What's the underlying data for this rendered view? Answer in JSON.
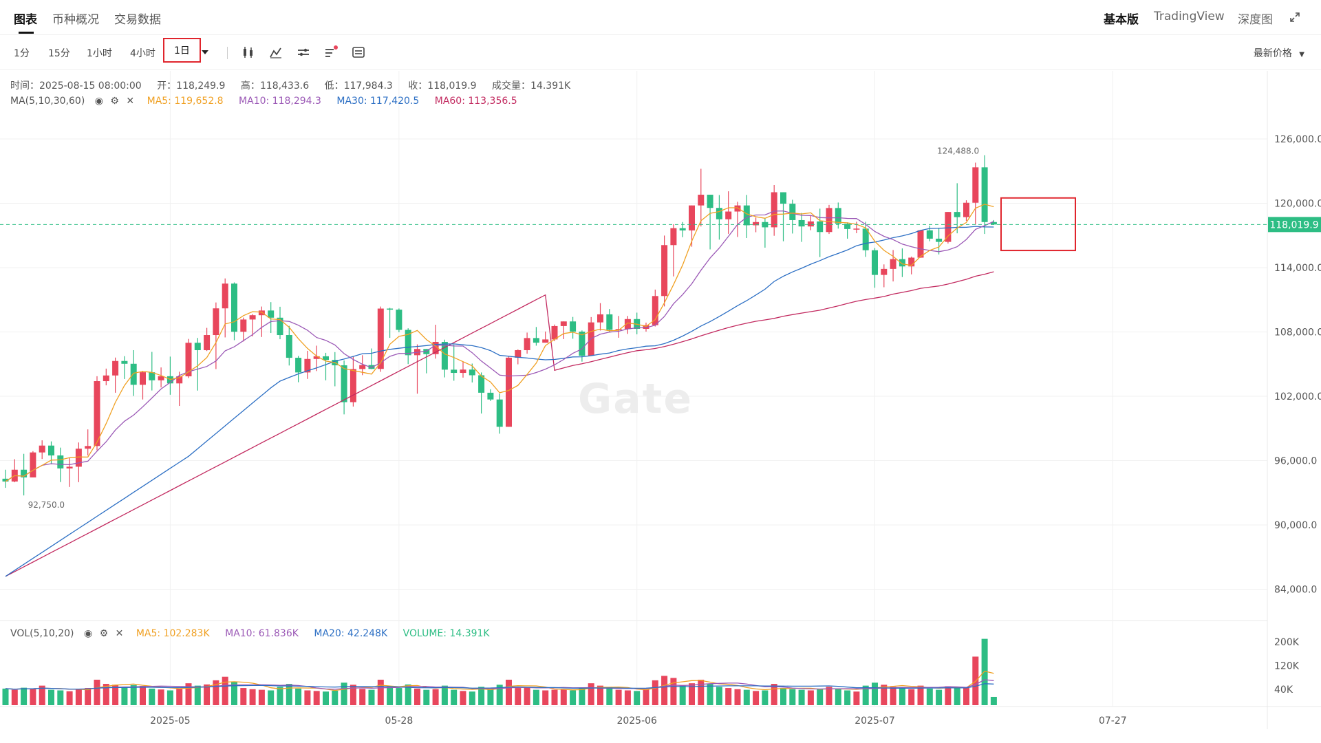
{
  "tabs": [
    {
      "label": "图表",
      "active": true
    },
    {
      "label": "币种概况",
      "active": false
    },
    {
      "label": "交易数据",
      "active": false
    }
  ],
  "right_tabs": [
    {
      "label": "基本版",
      "active": true
    },
    {
      "label": "TradingView",
      "active": false
    },
    {
      "label": "深度图",
      "active": false
    }
  ],
  "intervals": [
    "1分",
    "15分",
    "1小时",
    "4小时",
    "1日"
  ],
  "active_interval": "1日",
  "tools": [
    "candle-type-icon",
    "indicator-icon",
    "compare-icon",
    "drawing-icon",
    "settings-icon"
  ],
  "price_selector": "最新价格",
  "ohlc": {
    "time": "时间：2025-08-15 08:00:00",
    "open": "开：118,249.9",
    "high": "高：118,433.6",
    "low": "低：117,984.3",
    "close": "收：118,019.9",
    "volume": "成交量：14.391K"
  },
  "ma_legend": {
    "label": "MA(5,10,30,60)",
    "ma5": "MA5: 119,652.8",
    "ma10": "MA10: 118,294.3",
    "ma30": "MA30: 117,420.5",
    "ma60": "MA60: 113,356.5"
  },
  "vol_legend": {
    "label": "VOL(5,10,20)",
    "ma5": "MA5: 102.283K",
    "ma10": "MA10: 61.836K",
    "ma20": "MA20: 42.248K",
    "volume": "VOLUME: 14.391K"
  },
  "watermark": "Gate",
  "colors": {
    "up": "#e8465c",
    "down": "#2dbd84",
    "ma5": "#f0a022",
    "ma10": "#9b59b6",
    "ma30": "#2c6fc4",
    "ma60": "#c2295f",
    "grid": "#f1f1f1",
    "accent": "#e0242c"
  },
  "chart_data": {
    "type": "candlestick",
    "price_ylim": [
      80000,
      130000
    ],
    "y_ticks": [
      "126,000.0",
      "120,000.0",
      "114,000.0",
      "108,000.0",
      "102,000.0",
      "96,000.0",
      "90,000.0",
      "84,000.0"
    ],
    "vol_ticks": [
      "200K",
      "120K",
      "40K"
    ],
    "x_ticks": [
      "2025-05",
      "05-28",
      "2025-06",
      "2025-07",
      "07-27"
    ],
    "high_label": "124,488.0",
    "low_label": "92,750.0",
    "last_price": 118019.9,
    "last_price_label": "118,019.9",
    "candles": [
      [
        94310,
        94050,
        95150,
        93460,
        42
      ],
      [
        94050,
        95150,
        96130,
        93980,
        38
      ],
      [
        95150,
        94430,
        96630,
        92750,
        45
      ],
      [
        94430,
        96760,
        96880,
        94880,
        40
      ],
      [
        96760,
        97400,
        97890,
        96150,
        52
      ],
      [
        97400,
        96480,
        97790,
        95660,
        38
      ],
      [
        96480,
        95270,
        97210,
        94000,
        36
      ],
      [
        95270,
        95430,
        96290,
        93540,
        33
      ],
      [
        95430,
        97110,
        97690,
        93990,
        40
      ],
      [
        97110,
        97360,
        98910,
        96480,
        44
      ],
      [
        97360,
        103410,
        103870,
        96960,
        72
      ],
      [
        103410,
        103940,
        104580,
        103020,
        58
      ],
      [
        103940,
        105290,
        105610,
        102330,
        55
      ],
      [
        105290,
        105030,
        105740,
        103610,
        48
      ],
      [
        105030,
        103070,
        106300,
        102030,
        54
      ],
      [
        103070,
        104240,
        104370,
        101700,
        51
      ],
      [
        104240,
        103490,
        106140,
        102540,
        42
      ],
      [
        103490,
        103870,
        104690,
        102820,
        39
      ],
      [
        103870,
        103200,
        105700,
        102140,
        36
      ],
      [
        103200,
        103860,
        104290,
        101100,
        41
      ],
      [
        103860,
        106990,
        107350,
        103700,
        60
      ],
      [
        106990,
        106300,
        107440,
        102530,
        52
      ],
      [
        106300,
        107710,
        108380,
        106220,
        56
      ],
      [
        107710,
        110200,
        110750,
        104540,
        70
      ],
      [
        110200,
        112510,
        112990,
        107490,
        82
      ],
      [
        112510,
        108020,
        112620,
        107230,
        66
      ],
      [
        108020,
        109160,
        109340,
        107110,
        44
      ],
      [
        109160,
        109560,
        109660,
        107590,
        40
      ],
      [
        109560,
        110000,
        110370,
        107530,
        38
      ],
      [
        110000,
        109330,
        110780,
        107900,
        36
      ],
      [
        109330,
        107710,
        110350,
        107320,
        48
      ],
      [
        107710,
        105590,
        108570,
        104870,
        58
      ],
      [
        105590,
        104220,
        105760,
        103310,
        42
      ],
      [
        104220,
        105480,
        106240,
        103620,
        36
      ],
      [
        105480,
        105730,
        106720,
        104350,
        34
      ],
      [
        105730,
        105390,
        106050,
        103490,
        32
      ],
      [
        105390,
        104890,
        106120,
        102930,
        35
      ],
      [
        104890,
        101450,
        105340,
        100310,
        62
      ],
      [
        101450,
        104540,
        105690,
        101040,
        55
      ],
      [
        104540,
        104910,
        105830,
        103970,
        41
      ],
      [
        104910,
        104550,
        106460,
        104530,
        38
      ],
      [
        104550,
        110180,
        110370,
        104280,
        72
      ],
      [
        110180,
        110080,
        110250,
        107450,
        48
      ],
      [
        110080,
        108190,
        110190,
        107970,
        44
      ],
      [
        108190,
        105830,
        108340,
        105000,
        56
      ],
      [
        105830,
        106410,
        106840,
        102240,
        42
      ],
      [
        106410,
        105930,
        106210,
        104140,
        38
      ],
      [
        105930,
        107070,
        108670,
        105510,
        40
      ],
      [
        107070,
        104480,
        107280,
        103760,
        52
      ],
      [
        104480,
        104180,
        106810,
        103450,
        38
      ],
      [
        104180,
        104490,
        105220,
        103740,
        34
      ],
      [
        104490,
        103960,
        105050,
        103290,
        32
      ],
      [
        103960,
        102330,
        104220,
        100390,
        48
      ],
      [
        102330,
        101700,
        102650,
        101560,
        40
      ],
      [
        101700,
        99150,
        102250,
        98510,
        55
      ],
      [
        99150,
        105600,
        105710,
        99620,
        72
      ],
      [
        105600,
        106300,
        106370,
        104980,
        44
      ],
      [
        106300,
        107430,
        107940,
        105970,
        46
      ],
      [
        107430,
        107000,
        108460,
        106720,
        38
      ],
      [
        107000,
        107300,
        108040,
        107040,
        36
      ],
      [
        107300,
        108550,
        108690,
        107140,
        38
      ],
      [
        108550,
        108980,
        108550,
        107330,
        40
      ],
      [
        108980,
        108030,
        109400,
        107370,
        36
      ],
      [
        108030,
        105780,
        108140,
        105230,
        44
      ],
      [
        105780,
        108890,
        109390,
        105880,
        60
      ],
      [
        108890,
        109640,
        110690,
        108130,
        52
      ],
      [
        109640,
        108200,
        110140,
        107990,
        42
      ],
      [
        108200,
        108270,
        109490,
        107460,
        38
      ],
      [
        108270,
        109200,
        109490,
        107820,
        36
      ],
      [
        109200,
        108290,
        109800,
        107780,
        34
      ],
      [
        108290,
        108630,
        108870,
        108030,
        40
      ],
      [
        108630,
        111350,
        111950,
        108510,
        70
      ],
      [
        111350,
        116100,
        116990,
        110380,
        85
      ],
      [
        116100,
        117680,
        118040,
        113180,
        78
      ],
      [
        117680,
        117470,
        118250,
        116840,
        52
      ],
      [
        117470,
        119800,
        119760,
        115950,
        60
      ],
      [
        119800,
        120800,
        123220,
        117840,
        72
      ],
      [
        120800,
        119570,
        120330,
        115700,
        58
      ],
      [
        119570,
        118510,
        120770,
        116610,
        48
      ],
      [
        118510,
        119230,
        121120,
        117150,
        44
      ],
      [
        119230,
        119800,
        120140,
        116860,
        40
      ],
      [
        119800,
        117950,
        120780,
        116760,
        38
      ],
      [
        117950,
        118250,
        118670,
        117300,
        34
      ],
      [
        118250,
        117760,
        118650,
        115860,
        36
      ],
      [
        117760,
        121030,
        121700,
        116970,
        58
      ],
      [
        121030,
        119960,
        120980,
        116460,
        44
      ],
      [
        119960,
        118430,
        120330,
        117180,
        40
      ],
      [
        118430,
        117840,
        119100,
        116400,
        38
      ],
      [
        117840,
        118310,
        118890,
        117490,
        36
      ],
      [
        118310,
        117320,
        119500,
        114980,
        42
      ],
      [
        117320,
        119560,
        119850,
        117140,
        48
      ],
      [
        119560,
        118090,
        120070,
        117640,
        40
      ],
      [
        118090,
        117600,
        118220,
        116700,
        36
      ],
      [
        117600,
        117640,
        118280,
        117210,
        32
      ],
      [
        117640,
        115620,
        118280,
        115000,
        52
      ],
      [
        115620,
        113320,
        115830,
        112120,
        62
      ],
      [
        113320,
        113880,
        114300,
        112170,
        55
      ],
      [
        113880,
        114790,
        115640,
        112710,
        48
      ],
      [
        114790,
        114110,
        115790,
        113120,
        44
      ],
      [
        114110,
        114930,
        115030,
        113370,
        40
      ],
      [
        114930,
        117480,
        117510,
        114910,
        52
      ],
      [
        117480,
        116700,
        117920,
        116460,
        42
      ],
      [
        116700,
        116400,
        117720,
        115230,
        38
      ],
      [
        116400,
        119190,
        119170,
        116250,
        50
      ],
      [
        119190,
        118710,
        121870,
        117200,
        48
      ],
      [
        118710,
        120050,
        120280,
        118360,
        46
      ],
      [
        120050,
        123350,
        123790,
        118010,
        150
      ],
      [
        123350,
        118250,
        124488,
        117140,
        210
      ],
      [
        118250,
        118020,
        118434,
        117984,
        14
      ]
    ]
  }
}
